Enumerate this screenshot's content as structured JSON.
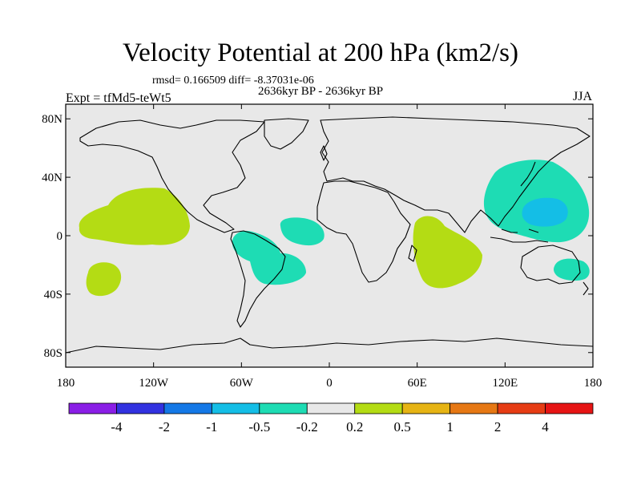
{
  "title": "Velocity Potential at 200 hPa (km2/s)",
  "stats": "rmsd= 0.166509 diff= -8.37031e-06",
  "period": "2636kyr BP - 2636kyr BP",
  "experiment": "Expt = tfMd5-teWt5",
  "season": "JJA",
  "map": {
    "lon_range": [
      -180,
      180
    ],
    "lat_range": [
      -90,
      90
    ],
    "ocean_color": "#e8e8e8",
    "y_ticks": [
      {
        "lat": 80,
        "label": "80N"
      },
      {
        "lat": 40,
        "label": "40N"
      },
      {
        "lat": 0,
        "label": "0"
      },
      {
        "lat": -40,
        "label": "40S"
      },
      {
        "lat": -80,
        "label": "80S"
      }
    ],
    "x_ticks": [
      {
        "lon": -180,
        "label": "180"
      },
      {
        "lon": -120,
        "label": "120W"
      },
      {
        "lon": -60,
        "label": "60W"
      },
      {
        "lon": 0,
        "label": "0"
      },
      {
        "lon": 60,
        "label": "60E"
      },
      {
        "lon": 120,
        "label": "120E"
      },
      {
        "lon": 180,
        "label": "180"
      }
    ]
  },
  "colorbar": {
    "colors": [
      "#8a1ee6",
      "#3232e0",
      "#1478e6",
      "#14bee6",
      "#1edcb4",
      "#e8e8e8",
      "#b4dc14",
      "#e6b414",
      "#e67814",
      "#e63c14",
      "#e61414"
    ],
    "levels": [
      "-4",
      "-2",
      "-1",
      "-0.5",
      "-0.2",
      "0.2",
      "0.5",
      "1",
      "2",
      "4"
    ]
  },
  "regions": [
    {
      "name": "positive-anomaly-east-pacific",
      "class": "0.2 to 0.5"
    },
    {
      "name": "positive-anomaly-south-pacific",
      "class": "0.2 to 0.5"
    },
    {
      "name": "positive-anomaly-indian-ocean",
      "class": "0.2 to 0.5"
    },
    {
      "name": "negative-anomaly-south-america",
      "class": "-0.5 to -0.2"
    },
    {
      "name": "negative-anomaly-tropical-atlantic",
      "class": "-0.5 to -0.2"
    },
    {
      "name": "negative-anomaly-west-pacific",
      "class": "-0.5 to -0.2"
    },
    {
      "name": "negative-anomaly-west-pacific-core",
      "class": "-1 to -0.5"
    },
    {
      "name": "negative-anomaly-australia",
      "class": "-0.5 to -0.2"
    }
  ]
}
